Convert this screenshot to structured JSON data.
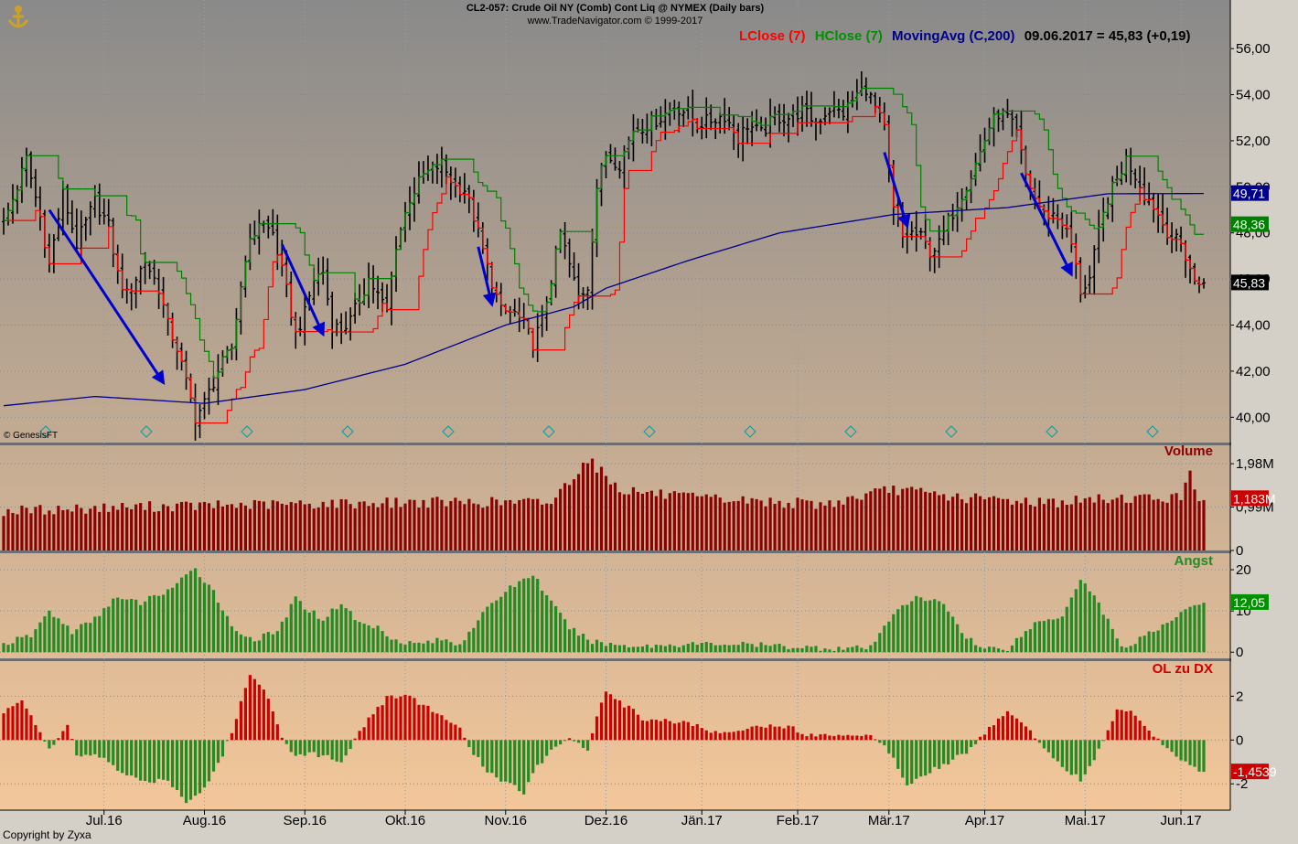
{
  "header": {
    "title": "CL2-057:  Crude Oil NY (Comb) Cont Liq @ NYMEX  (Daily bars)",
    "subtitle": "www.TradeNavigator.com © 1999-2017"
  },
  "legend": {
    "lclose": "LClose (7)",
    "hclose": "HClose (7)",
    "mavg": "MovingAvg (C,200)",
    "last": "09.06.2017 = 45,83 (+0,19)"
  },
  "footer": {
    "copyright": "Copyright by Zyxa",
    "genesis": "© GenesisFT"
  },
  "colors": {
    "bg_top": "#8a8a8a",
    "bg_bottom": "#f3c79a",
    "price_bars": "#000000",
    "lclose": "#ff0000",
    "hclose": "#008000",
    "mavg": "#00008b",
    "arrows": "#0000cd",
    "volume": "#8b0000",
    "angst": "#228b22",
    "ol_pos": "#cc0000",
    "ol_neg": "#228b22"
  },
  "chart_data": [
    {
      "type": "ohlc",
      "name": "price",
      "ylim": [
        38.9,
        56.8
      ],
      "yticks": [
        "56,00",
        "54,00",
        "52,00",
        "50,00",
        "48,00",
        "46,00",
        "44,00",
        "42,00",
        "40,00"
      ],
      "yticks_values": [
        56,
        54,
        52,
        50,
        48,
        46,
        44,
        42,
        40
      ],
      "x_labels": [
        "Jul.16",
        "Aug.16",
        "Sep.16",
        "Okt.16",
        "Nov.16",
        "Dez.16",
        "Jän.17",
        "Feb.17",
        "Mär.17",
        "Apr.17",
        "Mai.17",
        "Jun.17"
      ],
      "x_label_days": [
        22,
        44,
        66,
        88,
        110,
        132,
        153,
        174,
        194,
        215,
        237,
        258
      ],
      "num_days": 264,
      "close_anchors": [
        [
          0,
          48.4
        ],
        [
          3,
          50.0
        ],
        [
          5,
          51.2
        ],
        [
          8,
          48.7
        ],
        [
          10,
          46.6
        ],
        [
          13,
          49.7
        ],
        [
          16,
          47.5
        ],
        [
          20,
          49.4
        ],
        [
          23,
          48.3
        ],
        [
          25,
          46.2
        ],
        [
          27,
          45.3
        ],
        [
          31,
          46.8
        ],
        [
          34,
          45.6
        ],
        [
          36,
          44.0
        ],
        [
          38,
          43.0
        ],
        [
          40,
          41.5
        ],
        [
          42,
          40.0
        ],
        [
          44,
          40.6
        ],
        [
          47,
          42.0
        ],
        [
          50,
          43.0
        ],
        [
          53,
          47.0
        ],
        [
          56,
          48.5
        ],
        [
          59,
          48.0
        ],
        [
          62,
          45.5
        ],
        [
          64,
          43.6
        ],
        [
          66,
          44.5
        ],
        [
          68,
          46.0
        ],
        [
          70,
          46.3
        ],
        [
          72,
          44.0
        ],
        [
          74,
          43.8
        ],
        [
          76,
          44.2
        ],
        [
          80,
          46.0
        ],
        [
          84,
          44.6
        ],
        [
          86,
          47.5
        ],
        [
          89,
          49.5
        ],
        [
          92,
          50.5
        ],
        [
          96,
          51.0
        ],
        [
          99,
          50.0
        ],
        [
          101,
          49.9
        ],
        [
          103,
          48.7
        ],
        [
          106,
          46.5
        ],
        [
          109,
          44.6
        ],
        [
          112,
          44.5
        ],
        [
          114,
          44.0
        ],
        [
          116,
          43.2
        ],
        [
          118,
          44.2
        ],
        [
          120,
          46.0
        ],
        [
          122,
          48.0
        ],
        [
          124,
          46.6
        ],
        [
          126,
          45.2
        ],
        [
          128,
          45.7
        ],
        [
          130,
          50.0
        ],
        [
          132,
          51.4
        ],
        [
          135,
          51.0
        ],
        [
          138,
          52.5
        ],
        [
          141,
          52.7
        ],
        [
          144,
          53.0
        ],
        [
          147,
          53.5
        ],
        [
          150,
          53.2
        ],
        [
          152,
          52.7
        ],
        [
          155,
          52.9
        ],
        [
          158,
          53.1
        ],
        [
          161,
          52.1
        ],
        [
          163,
          52.7
        ],
        [
          166,
          52.3
        ],
        [
          169,
          53.0
        ],
        [
          172,
          53.0
        ],
        [
          175,
          53.3
        ],
        [
          178,
          52.8
        ],
        [
          181,
          53.4
        ],
        [
          184,
          53.2
        ],
        [
          187,
          54.0
        ],
        [
          189,
          54.3
        ],
        [
          191,
          53.4
        ],
        [
          193,
          52.5
        ],
        [
          195,
          49.0
        ],
        [
          197,
          47.8
        ],
        [
          199,
          48.0
        ],
        [
          201,
          47.8
        ],
        [
          203,
          47.2
        ],
        [
          205,
          47.5
        ],
        [
          207,
          48.5
        ],
        [
          209,
          49.3
        ],
        [
          212,
          50.5
        ],
        [
          214,
          51.5
        ],
        [
          216,
          52.6
        ],
        [
          218,
          53.2
        ],
        [
          220,
          53.0
        ],
        [
          222,
          52.3
        ],
        [
          224,
          50.5
        ],
        [
          226,
          49.5
        ],
        [
          228,
          48.8
        ],
        [
          230,
          48.8
        ],
        [
          232,
          48.5
        ],
        [
          234,
          47.5
        ],
        [
          236,
          45.5
        ],
        [
          238,
          46.0
        ],
        [
          240,
          48.0
        ],
        [
          242,
          49.5
        ],
        [
          244,
          50.3
        ],
        [
          246,
          51.2
        ],
        [
          248,
          50.5
        ],
        [
          250,
          49.7
        ],
        [
          252,
          49.2
        ],
        [
          254,
          48.4
        ],
        [
          256,
          47.8
        ],
        [
          258,
          47.5
        ],
        [
          260,
          46.5
        ],
        [
          261,
          45.8
        ],
        [
          263,
          45.83
        ]
      ],
      "lclose_last": 45.55,
      "hclose_last": 48.36,
      "mavg_anchors": [
        [
          0,
          40.5
        ],
        [
          20,
          40.9
        ],
        [
          44,
          40.6
        ],
        [
          66,
          41.2
        ],
        [
          88,
          42.3
        ],
        [
          110,
          44.0
        ],
        [
          125,
          44.8
        ],
        [
          132,
          45.6
        ],
        [
          150,
          46.8
        ],
        [
          170,
          48.0
        ],
        [
          195,
          48.8
        ],
        [
          220,
          49.1
        ],
        [
          242,
          49.7
        ],
        [
          263,
          49.71
        ]
      ],
      "last_value_labels": {
        "mavg": "49,71",
        "hclose": "48,36",
        "close": "45,83"
      },
      "arrows": [
        [
          [
            10,
            49.0
          ],
          [
            35,
            41.5
          ]
        ],
        [
          [
            61,
            47.5
          ],
          [
            70,
            43.6
          ]
        ],
        [
          [
            104,
            47.4
          ],
          [
            107,
            44.9
          ]
        ],
        [
          [
            193,
            51.5
          ],
          [
            198,
            48.3
          ]
        ],
        [
          [
            223,
            50.6
          ],
          [
            234,
            46.2
          ]
        ]
      ]
    },
    {
      "type": "bar",
      "name": "Volume",
      "title": "Volume",
      "ylim": [
        0,
        2.4
      ],
      "yticks": [
        "1,98M",
        "0,99M",
        "0"
      ],
      "yticks_values": [
        1.98,
        0.99,
        0
      ],
      "last_value_label": "1,183M",
      "value_anchors": [
        [
          0,
          0.9
        ],
        [
          30,
          1.0
        ],
        [
          60,
          1.05
        ],
        [
          90,
          1.1
        ],
        [
          120,
          1.1
        ],
        [
          128,
          2.1
        ],
        [
          135,
          1.4
        ],
        [
          150,
          1.2
        ],
        [
          180,
          1.05
        ],
        [
          195,
          1.4
        ],
        [
          210,
          1.2
        ],
        [
          230,
          1.1
        ],
        [
          245,
          1.2
        ],
        [
          258,
          1.2
        ],
        [
          260,
          1.85
        ],
        [
          262,
          1.15
        ]
      ]
    },
    {
      "type": "bar",
      "name": "Angst",
      "title": "Angst",
      "ylim": [
        -1.5,
        24
      ],
      "yticks": [
        "20",
        "10",
        "0"
      ],
      "yticks_values": [
        20,
        10,
        0
      ],
      "last_value_label": "12,05",
      "value_anchors": [
        [
          0,
          2
        ],
        [
          6,
          4
        ],
        [
          10,
          10
        ],
        [
          15,
          5
        ],
        [
          20,
          8
        ],
        [
          24,
          13
        ],
        [
          30,
          12
        ],
        [
          36,
          15
        ],
        [
          42,
          20
        ],
        [
          46,
          15
        ],
        [
          50,
          6
        ],
        [
          55,
          3
        ],
        [
          60,
          5
        ],
        [
          64,
          13
        ],
        [
          66,
          11
        ],
        [
          70,
          8
        ],
        [
          74,
          12
        ],
        [
          78,
          7
        ],
        [
          82,
          6
        ],
        [
          86,
          3
        ],
        [
          90,
          2
        ],
        [
          96,
          3
        ],
        [
          100,
          2
        ],
        [
          104,
          8
        ],
        [
          110,
          15
        ],
        [
          116,
          19
        ],
        [
          120,
          12
        ],
        [
          124,
          6
        ],
        [
          128,
          3
        ],
        [
          132,
          2
        ],
        [
          140,
          1.5
        ],
        [
          150,
          2
        ],
        [
          160,
          2
        ],
        [
          170,
          1.5
        ],
        [
          180,
          1
        ],
        [
          190,
          1
        ],
        [
          196,
          11
        ],
        [
          200,
          13
        ],
        [
          206,
          12
        ],
        [
          210,
          5
        ],
        [
          214,
          1
        ],
        [
          220,
          1
        ],
        [
          226,
          7
        ],
        [
          232,
          9
        ],
        [
          236,
          18
        ],
        [
          240,
          12
        ],
        [
          244,
          3
        ],
        [
          246,
          1
        ],
        [
          250,
          4
        ],
        [
          254,
          6
        ],
        [
          258,
          10
        ],
        [
          262,
          12
        ]
      ]
    },
    {
      "type": "bar",
      "name": "OL zu DX",
      "title": "OL zu DX",
      "ylim": [
        -3.2,
        3.6
      ],
      "yticks": [
        "2",
        "0",
        "-2"
      ],
      "yticks_values": [
        2,
        0,
        -2
      ],
      "last_value_label": "-1,4539",
      "value_anchors": [
        [
          0,
          1.2
        ],
        [
          4,
          1.9
        ],
        [
          8,
          0.4
        ],
        [
          10,
          -0.5
        ],
        [
          14,
          0.7
        ],
        [
          16,
          -0.8
        ],
        [
          20,
          -0.6
        ],
        [
          26,
          -1.5
        ],
        [
          30,
          -1.9
        ],
        [
          36,
          -1.8
        ],
        [
          40,
          -2.8
        ],
        [
          44,
          -2.2
        ],
        [
          48,
          -0.7
        ],
        [
          50,
          0.4
        ],
        [
          54,
          3.0
        ],
        [
          58,
          2.0
        ],
        [
          61,
          0.2
        ],
        [
          63,
          -0.6
        ],
        [
          66,
          -0.6
        ],
        [
          70,
          -0.7
        ],
        [
          74,
          -1.0
        ],
        [
          76,
          -0.3
        ],
        [
          80,
          1.0
        ],
        [
          84,
          1.9
        ],
        [
          88,
          2.1
        ],
        [
          92,
          1.6
        ],
        [
          96,
          1.1
        ],
        [
          100,
          0.5
        ],
        [
          102,
          -0.4
        ],
        [
          106,
          -1.4
        ],
        [
          110,
          -1.9
        ],
        [
          114,
          -2.4
        ],
        [
          116,
          -1.4
        ],
        [
          120,
          -0.5
        ],
        [
          124,
          0.2
        ],
        [
          128,
          -0.5
        ],
        [
          130,
          1.2
        ],
        [
          132,
          2.1
        ],
        [
          136,
          1.6
        ],
        [
          140,
          1.0
        ],
        [
          150,
          0.8
        ],
        [
          156,
          0.3
        ],
        [
          160,
          0.5
        ],
        [
          166,
          0.6
        ],
        [
          170,
          0.7
        ],
        [
          176,
          0.3
        ],
        [
          180,
          0.2
        ],
        [
          186,
          0.3
        ],
        [
          190,
          0.2
        ],
        [
          194,
          -0.5
        ],
        [
          198,
          -2.0
        ],
        [
          202,
          -1.5
        ],
        [
          208,
          -0.9
        ],
        [
          212,
          -0.4
        ],
        [
          216,
          0.5
        ],
        [
          220,
          1.4
        ],
        [
          224,
          0.6
        ],
        [
          228,
          -0.3
        ],
        [
          232,
          -1.2
        ],
        [
          236,
          -1.8
        ],
        [
          240,
          -0.5
        ],
        [
          244,
          1.4
        ],
        [
          248,
          1.2
        ],
        [
          252,
          0.2
        ],
        [
          256,
          -0.5
        ],
        [
          262,
          -1.45
        ]
      ]
    }
  ]
}
